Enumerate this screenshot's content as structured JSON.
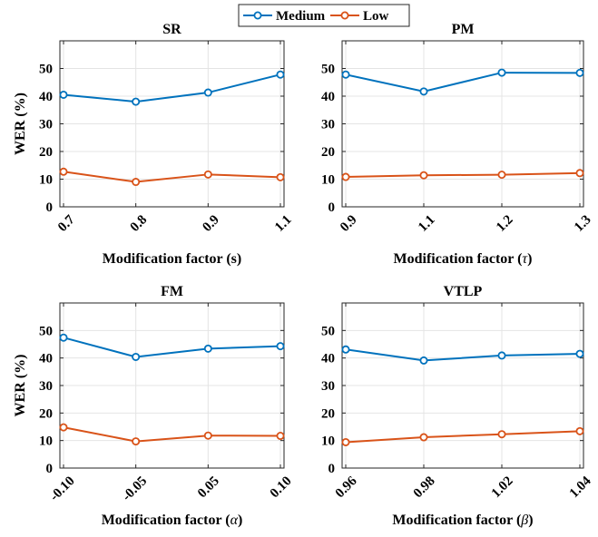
{
  "legend": [
    {
      "name": "Medium",
      "color": "#0072BD"
    },
    {
      "name": "Low",
      "color": "#D95319"
    }
  ],
  "chart_data": [
    {
      "type": "line",
      "title": "SR",
      "xlabel": "Modification factor (s)",
      "ylabel": "WER (%)",
      "categories": [
        "0.7",
        "0.8",
        "0.9",
        "1.1"
      ],
      "ylim": [
        0,
        60
      ],
      "yticks": [
        0,
        10,
        20,
        30,
        40,
        50
      ],
      "grid": true,
      "series": [
        {
          "name": "Medium",
          "color": "#0072BD",
          "values": [
            40.5,
            38.0,
            41.3,
            47.8
          ]
        },
        {
          "name": "Low",
          "color": "#D95319",
          "values": [
            12.7,
            9.0,
            11.7,
            10.7
          ]
        }
      ]
    },
    {
      "type": "line",
      "title": "PM",
      "xlabel_main": "Modification factor (",
      "xlabel_sym": "τ",
      "xlabel_end": ")",
      "ylabel": "",
      "categories": [
        "0.9",
        "1.1",
        "1.2",
        "1.3"
      ],
      "ylim": [
        0,
        60
      ],
      "yticks": [
        0,
        10,
        20,
        30,
        40,
        50
      ],
      "grid": true,
      "series": [
        {
          "name": "Medium",
          "color": "#0072BD",
          "values": [
            47.8,
            41.7,
            48.5,
            48.4
          ]
        },
        {
          "name": "Low",
          "color": "#D95319",
          "values": [
            10.8,
            11.4,
            11.6,
            12.2
          ]
        }
      ]
    },
    {
      "type": "line",
      "title": "FM",
      "xlabel_main": "Modification factor (",
      "xlabel_sym": "α",
      "xlabel_end": ")",
      "ylabel": "WER (%)",
      "categories": [
        "-0.10",
        "-0.05",
        "0.05",
        "0.10"
      ],
      "ylim": [
        0,
        60
      ],
      "yticks": [
        0,
        10,
        20,
        30,
        40,
        50
      ],
      "grid": true,
      "series": [
        {
          "name": "Medium",
          "color": "#0072BD",
          "values": [
            47.4,
            40.4,
            43.4,
            44.3
          ]
        },
        {
          "name": "Low",
          "color": "#D95319",
          "values": [
            14.8,
            9.7,
            11.8,
            11.7
          ]
        }
      ]
    },
    {
      "type": "line",
      "title": "VTLP",
      "xlabel_main": "Modification factor (",
      "xlabel_sym": "β",
      "xlabel_end": ")",
      "ylabel": "",
      "categories": [
        "0.96",
        "0.98",
        "1.02",
        "1.04"
      ],
      "ylim": [
        0,
        60
      ],
      "yticks": [
        0,
        10,
        20,
        30,
        40,
        50
      ],
      "grid": true,
      "series": [
        {
          "name": "Medium",
          "color": "#0072BD",
          "values": [
            43.1,
            39.1,
            40.9,
            41.5
          ]
        },
        {
          "name": "Low",
          "color": "#D95319",
          "values": [
            9.4,
            11.2,
            12.3,
            13.4
          ]
        }
      ]
    }
  ]
}
